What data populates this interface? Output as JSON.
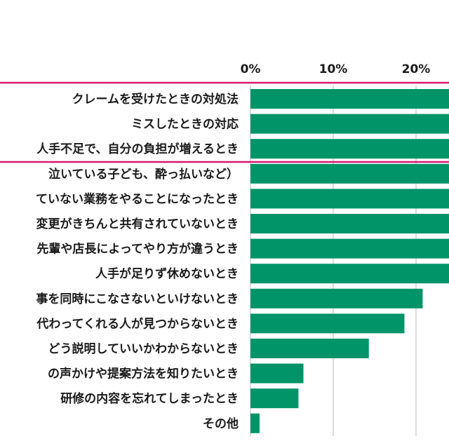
{
  "chart_data": {
    "type": "bar",
    "orientation": "horizontal",
    "categories": [
      "クレームを受けたときの対処法",
      "ミスしたときの対応",
      "人手不足で、自分の負担が増えるとき",
      "泣いている子ども、酔っ払いなど）",
      "ていない業務をやることになったとき",
      "変更がきちんと共有されていないとき",
      "先輩や店長によってやり方が違うとき",
      "人手が足りず休めないとき",
      "事を同時にこなさないといけないとき",
      "代わってくれる人が見つからないとき",
      "どう説明していいかわからないとき",
      "の声かけや提案方法を知りたいとき",
      "研修の内容を忘れてしまったとき",
      "その他"
    ],
    "values": [
      25,
      25,
      25,
      25,
      25,
      25,
      25,
      25,
      20.8,
      18.6,
      14.3,
      6.4,
      5.8,
      1.1
    ],
    "value_note_visible": "",
    "xticks": [
      "0%",
      "10%",
      "20%"
    ],
    "xlim": [
      0,
      24
    ],
    "grid": true,
    "bar_color": "#009468",
    "highlight_line_color": "#d8186f"
  }
}
